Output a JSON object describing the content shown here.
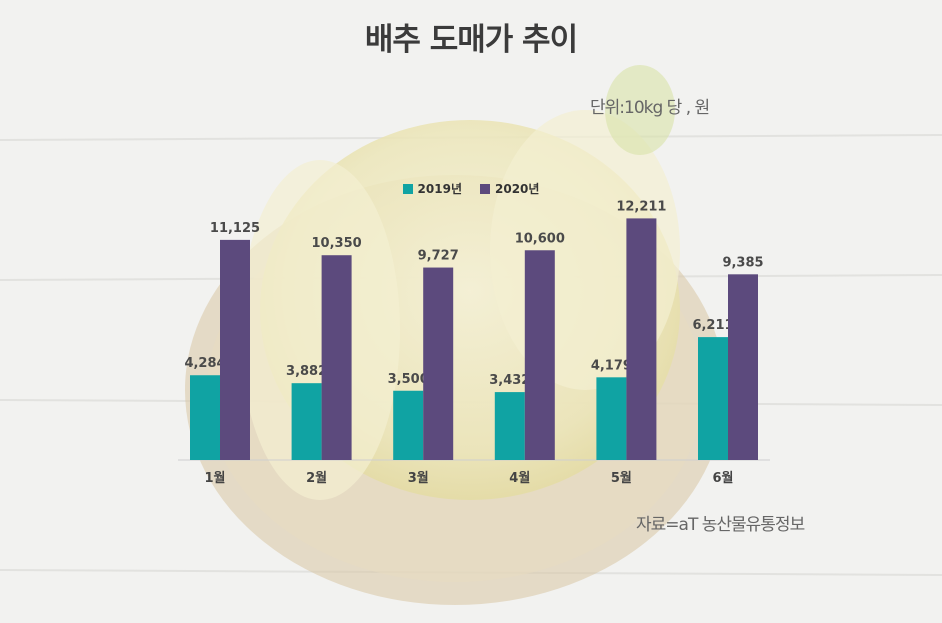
{
  "title": "배추 도매가 추이",
  "unit_note": "단위:10kg 당 , 원",
  "source_note": "자료=aT 농산물유통정보",
  "colors": {
    "series_2019": "#10a3a3",
    "series_2020": "#5c4a7d",
    "label": "#4a4a4a"
  },
  "chart_data": {
    "type": "bar",
    "categories": [
      "1월",
      "2월",
      "3월",
      "4월",
      "5월",
      "6월"
    ],
    "series": [
      {
        "name": "2019년",
        "values": [
          4284,
          3882,
          3500,
          3432,
          4179,
          6211
        ],
        "labels": [
          "4,284",
          "3,882",
          "3,500",
          "3,432",
          "4,179",
          "6,211"
        ]
      },
      {
        "name": "2020년",
        "values": [
          11125,
          10350,
          9727,
          10600,
          12211,
          9385
        ],
        "labels": [
          "11,125",
          "10,350",
          "9,727",
          "10,600",
          "12,211",
          "9,385"
        ]
      }
    ],
    "ylim": [
      0,
      14000
    ],
    "grid": false,
    "legend": "top-center"
  }
}
